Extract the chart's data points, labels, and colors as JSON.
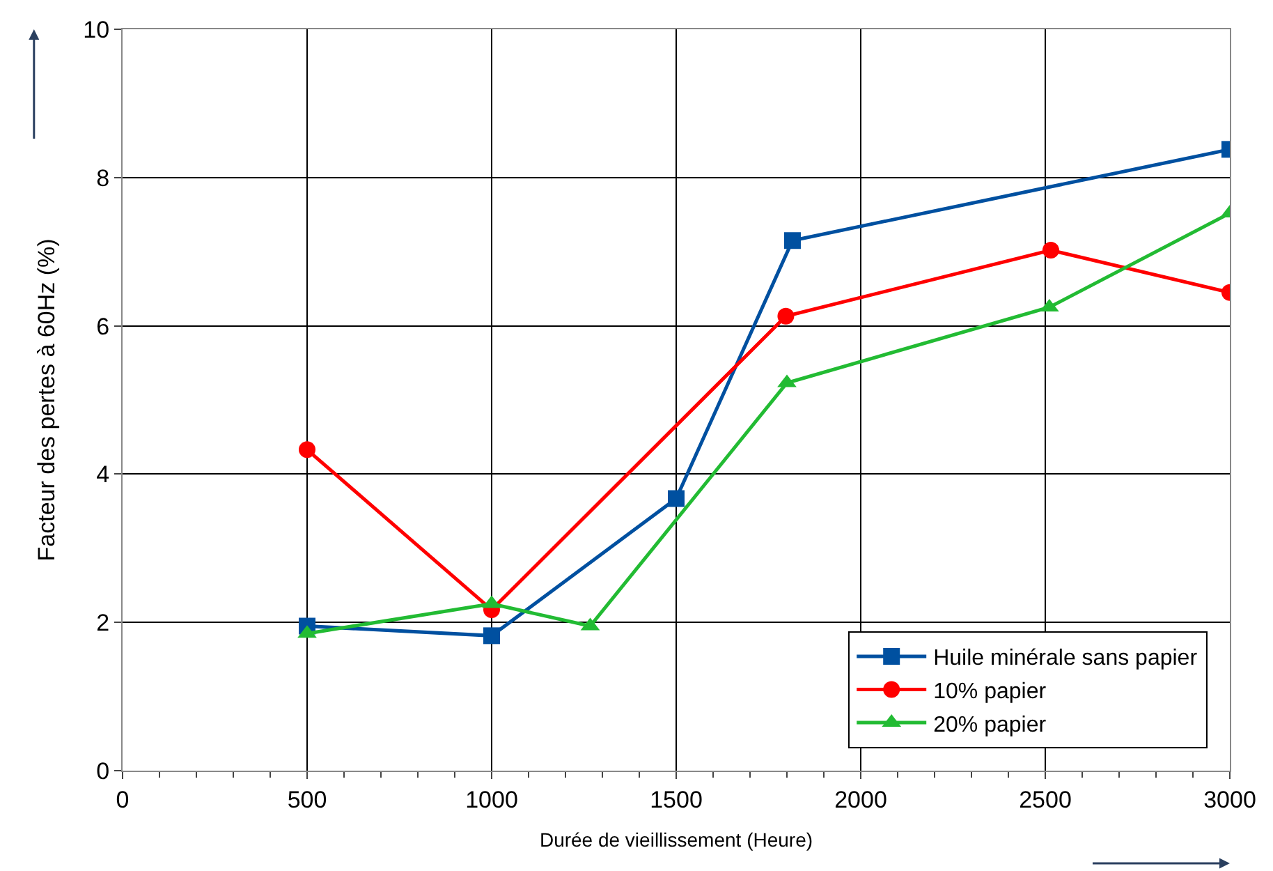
{
  "chart_data": {
    "type": "line",
    "xlabel": "Durée de vieillissement (Heure)",
    "ylabel": "Facteur des pertes à 60Hz (%)",
    "xlim": [
      0,
      3000
    ],
    "xticks": [
      0,
      500,
      1000,
      1500,
      2000,
      2500,
      3000
    ],
    "ylim": [
      0,
      10
    ],
    "yticks": [
      0,
      2,
      4,
      6,
      8,
      10
    ],
    "grid": true,
    "legend": "bottom right",
    "series": [
      {
        "name": "Huile minérale sans papier",
        "color": "#0050a0",
        "marker": "square",
        "x": [
          500,
          1000,
          1500,
          1815,
          3000
        ],
        "values": [
          1.95,
          1.82,
          3.67,
          7.15,
          8.38
        ]
      },
      {
        "name": "10% papier",
        "color": "#ff0000",
        "marker": "circle",
        "x": [
          500,
          1000,
          1797,
          2515,
          3000
        ],
        "values": [
          4.33,
          2.17,
          6.13,
          7.02,
          6.45
        ]
      },
      {
        "name": "20% papier",
        "color": "#22bb33",
        "marker": "triangle",
        "x": [
          500,
          1000,
          1267,
          1800,
          2511,
          3000
        ],
        "values": [
          1.85,
          2.25,
          1.95,
          5.23,
          6.25,
          7.52
        ]
      }
    ]
  }
}
